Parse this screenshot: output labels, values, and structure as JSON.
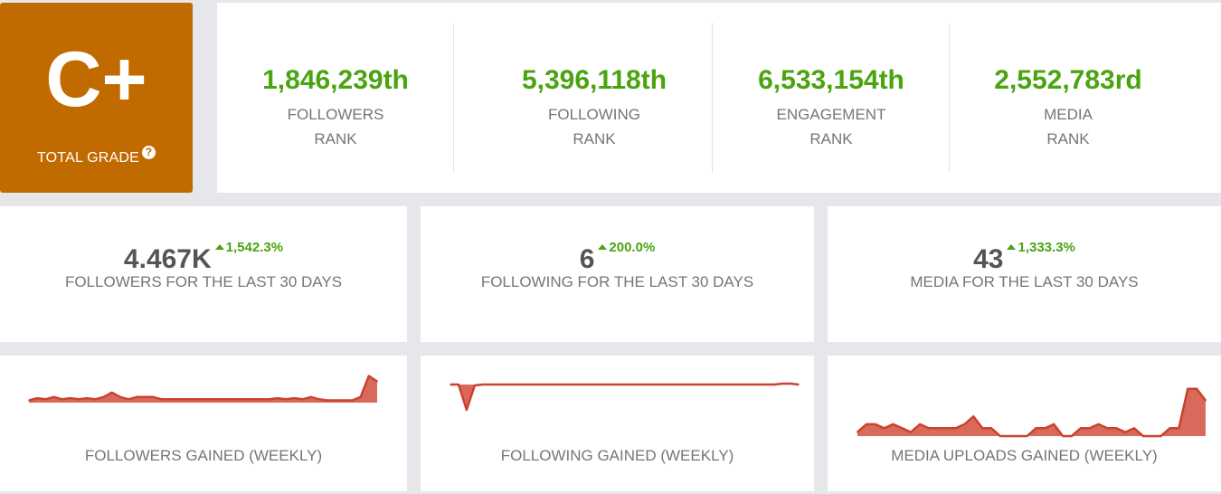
{
  "grade": {
    "letter": "C+",
    "label": "TOTAL GRADE",
    "help_icon": "question-circle-icon",
    "color": "#c16a00"
  },
  "ranks": [
    {
      "value": "1,846,239th",
      "label_line1": "FOLLOWERS",
      "label_line2": "RANK"
    },
    {
      "value": "5,396,118th",
      "label_line1": "FOLLOWING",
      "label_line2": "RANK"
    },
    {
      "value": "6,533,154th",
      "label_line1": "ENGAGEMENT",
      "label_line2": "RANK"
    },
    {
      "value": "2,552,783rd",
      "label_line1": "MEDIA",
      "label_line2": "RANK"
    }
  ],
  "stats": [
    {
      "value": "4.467K",
      "change": "1,542.3%",
      "label": "FOLLOWERS FOR THE LAST 30 DAYS"
    },
    {
      "value": "6",
      "change": "200.0%",
      "label": "FOLLOWING FOR THE LAST 30 DAYS"
    },
    {
      "value": "43",
      "change": "1,333.3%",
      "label": "MEDIA FOR THE LAST 30 DAYS"
    }
  ],
  "colors": {
    "positive": "#4aa40f",
    "chart_line": "#c9432f",
    "chart_fill": "#d9695a"
  },
  "chart_data": [
    {
      "type": "area",
      "title": "FOLLOWERS GAINED (WEEKLY)",
      "values": [
        2,
        4,
        3,
        5,
        3,
        4,
        3,
        4,
        3,
        5,
        9,
        5,
        3,
        5,
        5,
        5,
        3,
        3,
        3,
        3,
        3,
        3,
        3,
        3,
        3,
        3,
        3,
        3,
        3,
        3,
        4,
        3,
        4,
        3,
        5,
        3,
        2,
        2,
        2,
        2,
        5,
        24,
        19
      ],
      "ylim": [
        0,
        26
      ]
    },
    {
      "type": "area",
      "title": "FOLLOWING GAINED (WEEKLY)",
      "values": [
        0,
        0,
        -28,
        -1,
        0,
        0,
        0,
        0,
        0,
        0,
        0,
        0,
        0,
        0,
        0,
        0,
        0,
        0,
        0,
        0,
        0,
        0,
        0,
        0,
        0,
        0,
        0,
        0,
        0,
        0,
        0,
        0,
        0,
        0,
        0,
        0,
        0,
        0,
        0,
        0,
        0,
        1,
        1,
        0
      ],
      "ylim": [
        -30,
        2
      ]
    },
    {
      "type": "area",
      "title": "MEDIA UPLOADS GAINED (WEEKLY)",
      "values": [
        1,
        3,
        3,
        2,
        3,
        2,
        1,
        3,
        2,
        2,
        2,
        2,
        3,
        5,
        2,
        2,
        0,
        0,
        0,
        0,
        2,
        2,
        3,
        0,
        0,
        2,
        2,
        3,
        2,
        2,
        1,
        2,
        0,
        0,
        0,
        2,
        2,
        12,
        12,
        9
      ],
      "ylim": [
        0,
        14
      ]
    }
  ]
}
